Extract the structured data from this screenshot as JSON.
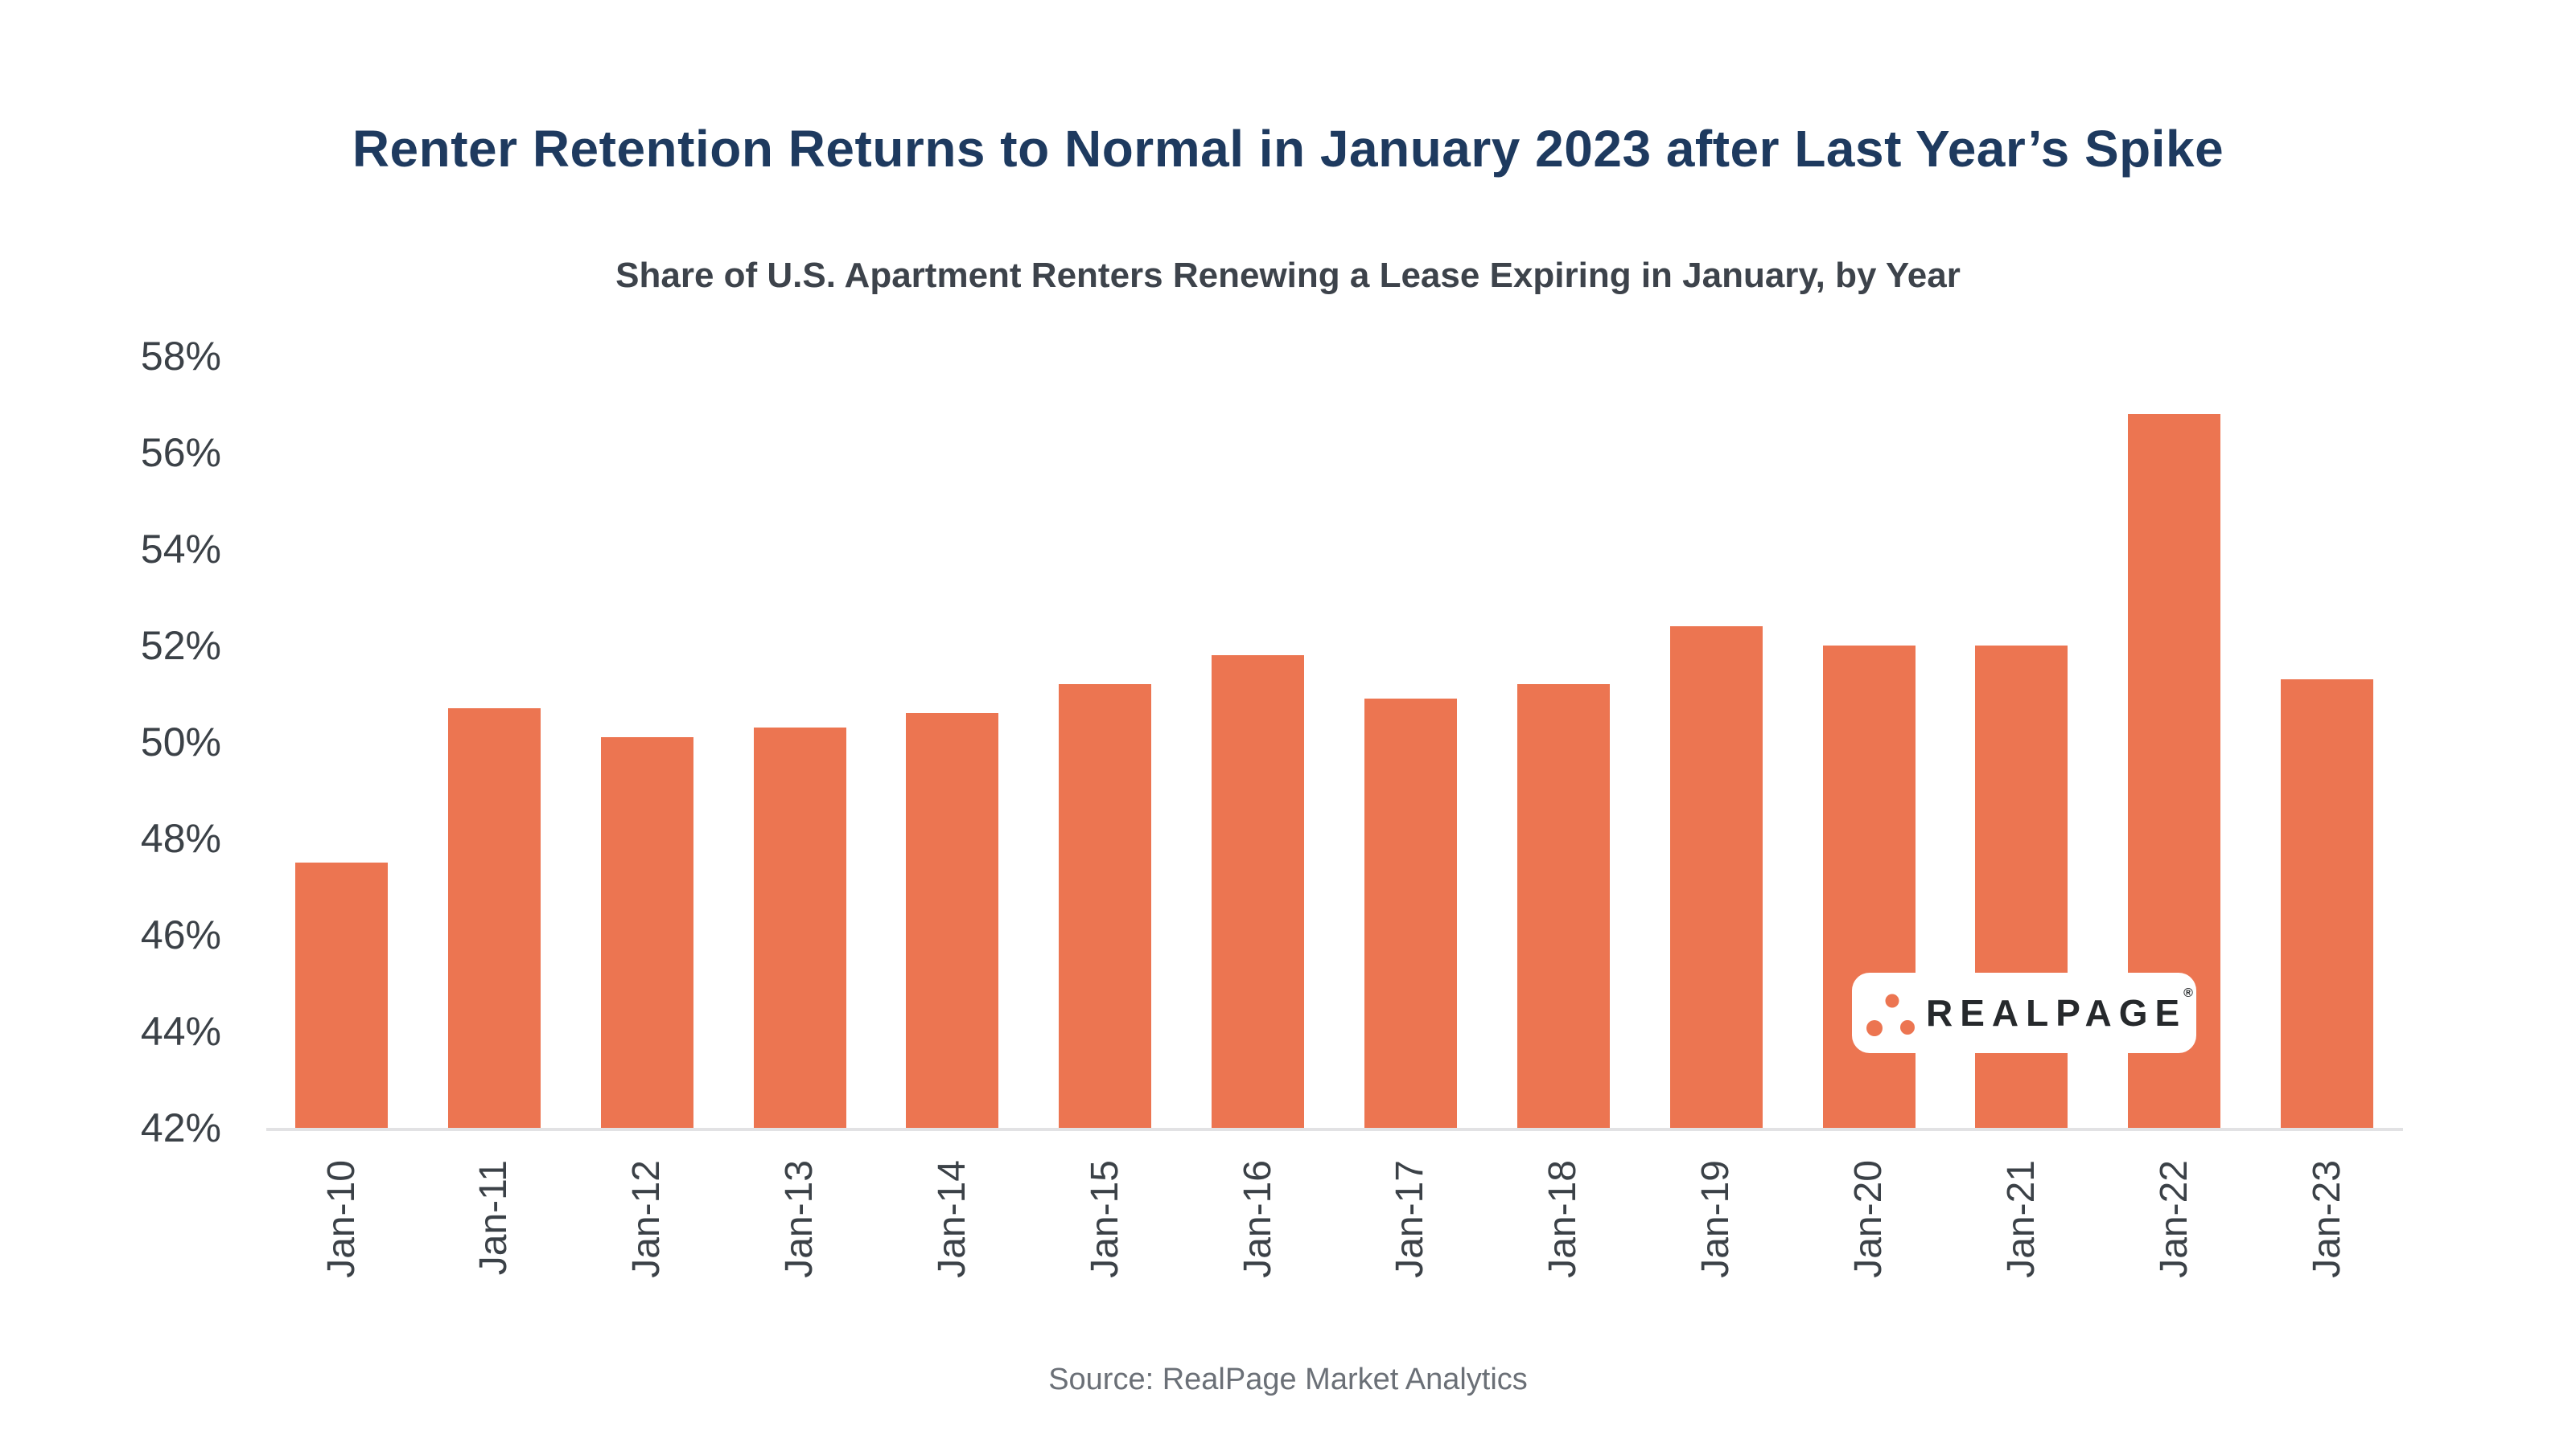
{
  "chart": {
    "title": "Renter Retention Returns to Normal in January 2023 after Last Year’s Spike",
    "subtitle": "Share of U.S. Apartment Renters Renewing a Lease Expiring in January, by Year",
    "source": "Source: RealPage Market Analytics",
    "logo": {
      "text": "REALPAGE",
      "registered": "®"
    }
  },
  "chart_data": {
    "type": "bar",
    "categories": [
      "Jan-10",
      "Jan-11",
      "Jan-12",
      "Jan-13",
      "Jan-14",
      "Jan-15",
      "Jan-16",
      "Jan-17",
      "Jan-18",
      "Jan-19",
      "Jan-20",
      "Jan-21",
      "Jan-22",
      "Jan-23"
    ],
    "values": [
      47.5,
      50.7,
      50.1,
      50.3,
      50.6,
      51.2,
      51.8,
      50.9,
      51.2,
      52.4,
      52.0,
      52.0,
      56.8,
      51.3
    ],
    "title": "Renter Retention Returns to Normal in January 2023 after Last Year’s Spike",
    "subtitle": "Share of U.S. Apartment Renters Renewing a Lease Expiring in January, by Year",
    "xlabel": "",
    "ylabel": "",
    "ylim": [
      42,
      58
    ],
    "ytick_step": 2,
    "ytick_labels": [
      "58%",
      "56%",
      "54%",
      "52%",
      "50%",
      "48%",
      "46%",
      "44%",
      "42%"
    ],
    "grid": false,
    "legend": "none",
    "bar_color": "#EC7551"
  },
  "colors": {
    "background": "#FFFFFF",
    "title": "#1E3A5F",
    "subtitle": "#3D434B",
    "axis_text": "#3B4147",
    "axis_line": "#E2E2E4",
    "bar": "#EC7551",
    "logo_dot": "#EC7551",
    "logo_text": "#26292C",
    "source_text": "#6B7077"
  }
}
